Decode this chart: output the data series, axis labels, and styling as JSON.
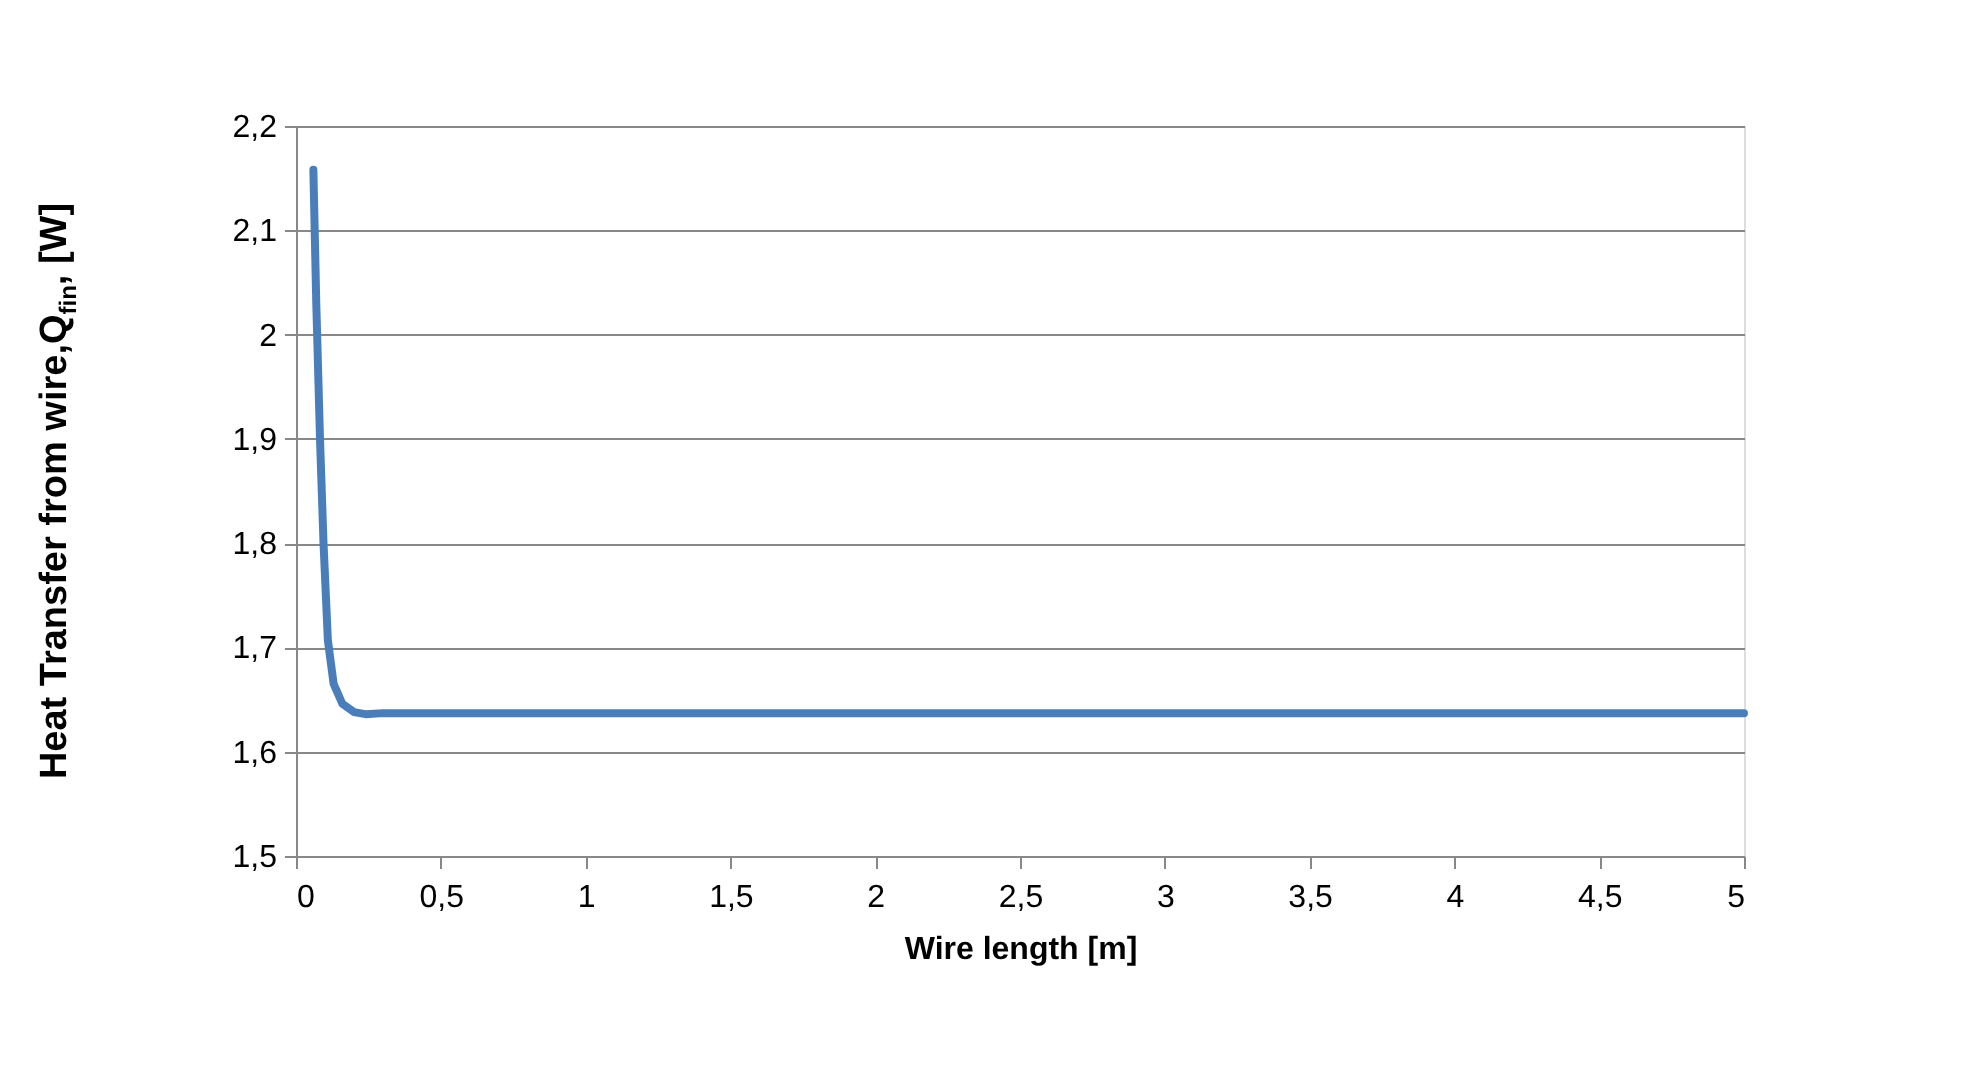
{
  "chart_data": {
    "type": "line",
    "xlabel": "Wire length [m]",
    "ylabel": "Heat Transfer from wire,Q$_{fin}$, [W]",
    "series": [
      {
        "color": "#4a7ebb",
        "x": [
          0.06,
          0.07,
          0.083,
          0.095,
          0.11,
          0.13,
          0.16,
          0.2,
          0.24,
          0.3,
          0.5,
          1,
          2,
          3,
          4,
          5
        ],
        "values": [
          2.158,
          2.03,
          1.899,
          1.8,
          1.707,
          1.665,
          1.646,
          1.638,
          1.636,
          1.637,
          1.637,
          1.637,
          1.637,
          1.637,
          1.637,
          1.637
        ]
      }
    ],
    "xlim": [
      0,
      5
    ],
    "ylim": [
      1.5,
      2.2
    ],
    "xticks": [
      0,
      {
        "value": 0.5,
        "label": "0,5"
      },
      1,
      {
        "value": 1.5,
        "label": "1,5"
      },
      2,
      {
        "value": 2.5,
        "label": "2,5"
      },
      3,
      {
        "value": 3.5,
        "label": "3,5"
      },
      4,
      {
        "value": 4.5,
        "label": "4,5"
      },
      5
    ],
    "yticks": [
      {
        "value": 1.5,
        "label": "1,5"
      },
      {
        "value": 1.6,
        "label": "1,6"
      },
      {
        "value": 1.7,
        "label": "1,7"
      },
      {
        "value": 1.8,
        "label": "1,8"
      },
      {
        "value": 1.9,
        "label": "1,9"
      },
      2,
      {
        "value": 2.1,
        "label": "2,1"
      },
      {
        "value": 2.2,
        "label": "2,2"
      }
    ],
    "grid": "y",
    "marker": "none",
    "line_style": "solid"
  }
}
